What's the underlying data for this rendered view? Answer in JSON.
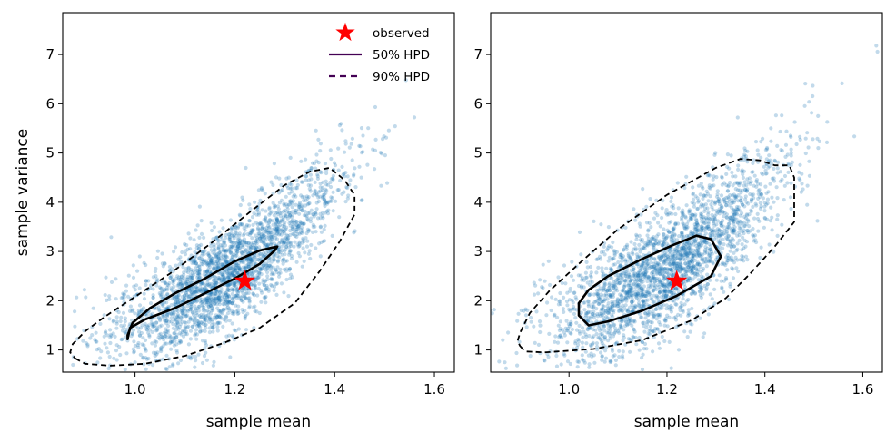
{
  "chart_data": [
    {
      "type": "scatter",
      "xlabel": "sample mean",
      "ylabel": "sample variance",
      "xlim": [
        0.855,
        1.64
      ],
      "ylim": [
        0.55,
        7.85
      ],
      "xticks": [
        1.0,
        1.2,
        1.4,
        1.6
      ],
      "xtick_labels": [
        "1.0",
        "1.2",
        "1.4",
        "1.6"
      ],
      "yticks": [
        1,
        2,
        3,
        4,
        5,
        6,
        7
      ],
      "ytick_labels": [
        "1",
        "2",
        "3",
        "4",
        "5",
        "6",
        "7"
      ],
      "grid": false,
      "legend": "top-right",
      "scatter_color": "#1f77b4",
      "observed": {
        "name": "observed",
        "x": 1.22,
        "y": 2.4,
        "color": "#ff0000"
      },
      "samples": {
        "approx_count": 2500,
        "mean_x": 1.18,
        "mean_y": 2.45,
        "sd_x": 0.115,
        "sd_y": 0.95,
        "correlation": 0.82
      },
      "contours": [
        {
          "name": "50% HPD",
          "style": "solid",
          "color": "#000000",
          "points": [
            [
              0.985,
              1.22
            ],
            [
              0.99,
              1.45
            ],
            [
              1.02,
              1.62
            ],
            [
              1.08,
              1.85
            ],
            [
              1.14,
              2.15
            ],
            [
              1.2,
              2.45
            ],
            [
              1.25,
              2.75
            ],
            [
              1.28,
              3.02
            ],
            [
              1.285,
              3.1
            ],
            [
              1.275,
              3.08
            ],
            [
              1.25,
              3.02
            ],
            [
              1.2,
              2.8
            ],
            [
              1.14,
              2.45
            ],
            [
              1.08,
              2.15
            ],
            [
              1.03,
              1.85
            ],
            [
              0.995,
              1.55
            ],
            [
              0.985,
              1.3
            ]
          ]
        },
        {
          "name": "90% HPD",
          "style": "dashed",
          "color": "#000000",
          "points": [
            [
              0.88,
              0.83
            ],
            [
              0.9,
              0.72
            ],
            [
              0.95,
              0.68
            ],
            [
              1.02,
              0.72
            ],
            [
              1.1,
              0.88
            ],
            [
              1.18,
              1.15
            ],
            [
              1.25,
              1.45
            ],
            [
              1.32,
              1.95
            ],
            [
              1.37,
              2.6
            ],
            [
              1.41,
              3.2
            ],
            [
              1.44,
              3.75
            ],
            [
              1.44,
              4.15
            ],
            [
              1.42,
              4.45
            ],
            [
              1.39,
              4.7
            ],
            [
              1.35,
              4.62
            ],
            [
              1.3,
              4.35
            ],
            [
              1.23,
              3.8
            ],
            [
              1.15,
              3.15
            ],
            [
              1.07,
              2.55
            ],
            [
              1.0,
              2.08
            ],
            [
              0.94,
              1.68
            ],
            [
              0.9,
              1.38
            ],
            [
              0.875,
              1.12
            ],
            [
              0.87,
              0.95
            ]
          ]
        }
      ]
    },
    {
      "type": "scatter",
      "xlabel": "sample mean",
      "ylabel": "",
      "xlim": [
        0.84,
        1.64
      ],
      "ylim": [
        0.55,
        7.85
      ],
      "xticks": [
        1.0,
        1.2,
        1.4,
        1.6
      ],
      "xtick_labels": [
        "1.0",
        "1.2",
        "1.4",
        "1.6"
      ],
      "yticks": [
        1,
        2,
        3,
        4,
        5,
        6,
        7
      ],
      "ytick_labels": [
        "1",
        "2",
        "3",
        "4",
        "5",
        "6",
        "7"
      ],
      "grid": false,
      "scatter_color": "#1f77b4",
      "observed": {
        "name": "observed",
        "x": 1.22,
        "y": 2.4,
        "color": "#ff0000"
      },
      "samples": {
        "approx_count": 2500,
        "mean_x": 1.2,
        "mean_y": 2.6,
        "sd_x": 0.12,
        "sd_y": 1.0,
        "correlation": 0.8
      },
      "contours": [
        {
          "name": "50% HPD",
          "style": "solid",
          "color": "#000000",
          "points": [
            [
              1.04,
              1.5
            ],
            [
              1.08,
              1.58
            ],
            [
              1.15,
              1.8
            ],
            [
              1.22,
              2.1
            ],
            [
              1.29,
              2.5
            ],
            [
              1.31,
              2.9
            ],
            [
              1.29,
              3.25
            ],
            [
              1.26,
              3.32
            ],
            [
              1.21,
              3.12
            ],
            [
              1.15,
              2.85
            ],
            [
              1.08,
              2.5
            ],
            [
              1.04,
              2.22
            ],
            [
              1.02,
              1.95
            ],
            [
              1.02,
              1.7
            ]
          ]
        },
        {
          "name": "90% HPD",
          "style": "dashed",
          "color": "#000000",
          "points": [
            [
              0.9,
              1.08
            ],
            [
              0.91,
              0.97
            ],
            [
              0.95,
              0.95
            ],
            [
              1.05,
              1.02
            ],
            [
              1.15,
              1.2
            ],
            [
              1.25,
              1.6
            ],
            [
              1.32,
              2.05
            ],
            [
              1.37,
              2.55
            ],
            [
              1.42,
              3.1
            ],
            [
              1.46,
              3.6
            ],
            [
              1.46,
              4.05
            ],
            [
              1.46,
              4.5
            ],
            [
              1.45,
              4.75
            ],
            [
              1.42,
              4.75
            ],
            [
              1.39,
              4.85
            ],
            [
              1.35,
              4.88
            ],
            [
              1.3,
              4.7
            ],
            [
              1.2,
              4.15
            ],
            [
              1.1,
              3.45
            ],
            [
              1.02,
              2.75
            ],
            [
              0.96,
              2.2
            ],
            [
              0.92,
              1.75
            ],
            [
              0.9,
              1.35
            ],
            [
              0.895,
              1.18
            ]
          ]
        }
      ]
    }
  ],
  "legend": {
    "observed_label": "observed",
    "hpd50_label": "50% HPD",
    "hpd90_label": "90% HPD",
    "line_color": "#440154"
  }
}
